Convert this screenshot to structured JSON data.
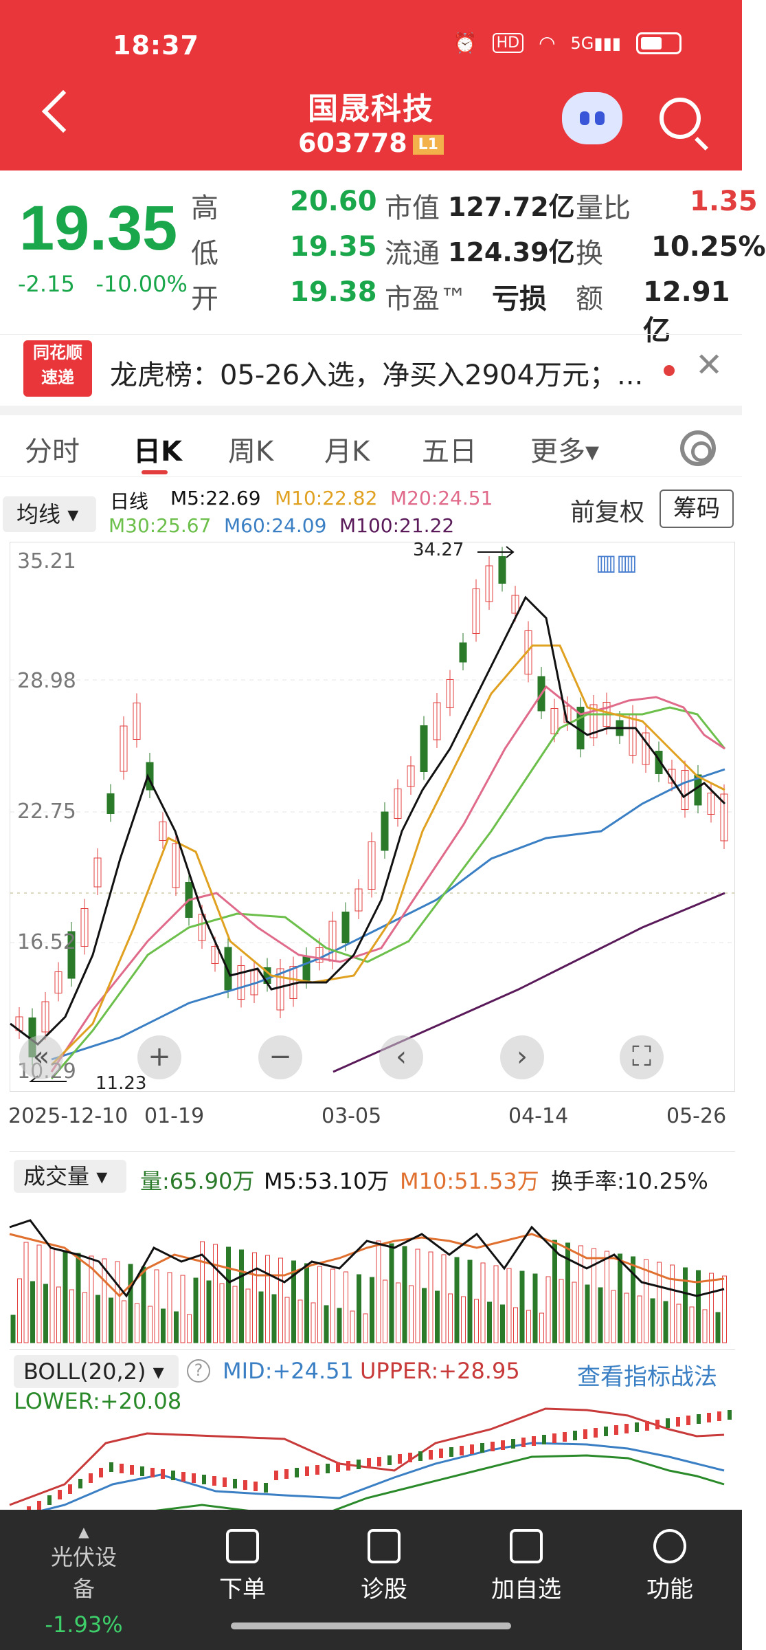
{
  "status": {
    "time": "18:37",
    "icons": [
      "alarm-icon",
      "hd-icon",
      "wifi-icon",
      "5g-signal-icon",
      "battery-icon"
    ]
  },
  "header": {
    "title": "国晟科技",
    "code": "603778",
    "badge": "L1"
  },
  "quote": {
    "price": "19.35",
    "change": "-2.15",
    "change_pct": "-10.00%",
    "cells": [
      {
        "label": "高",
        "value": "20.60"
      },
      {
        "label": "市值",
        "value": "127.72亿"
      },
      {
        "label": "量比",
        "value": "1.35"
      },
      {
        "label": "低",
        "value": "19.35"
      },
      {
        "label": "流通",
        "value": "124.39亿"
      },
      {
        "label": "换",
        "value": "10.25%"
      },
      {
        "label": "开",
        "value": "19.38"
      },
      {
        "label": "市盈™",
        "value": "亏损"
      },
      {
        "label": "额",
        "value": "12.91亿"
      }
    ]
  },
  "news": {
    "logo_top": "同花顺",
    "logo_bottom": "速递",
    "text": "龙虎榜：05-26入选，净买入2904万元；..."
  },
  "tabs": [
    "分时",
    "日K",
    "周K",
    "月K",
    "五日",
    "更多▾"
  ],
  "ma_legend": {
    "button": "均线",
    "label": "日线",
    "m5": "M5:22.69",
    "m10": "M10:22.82",
    "m20": "M20:24.51",
    "m30": "M30:25.67",
    "m60": "M60:24.09",
    "m100": "M100:21.22",
    "fq": "前复权",
    "chouma": "筹码",
    "colors": {
      "m5": "#111111",
      "m10": "#e0a020",
      "m20": "#e06a8a",
      "m30": "#6bbf4a",
      "m60": "#3a7fc4",
      "m100": "#5a1a5a"
    }
  },
  "kline": {
    "y_ticks": [
      "35.21",
      "28.98",
      "22.75",
      "16.52",
      "10.29"
    ],
    "x_ticks": [
      "2025-12-10",
      "01-19",
      "03-05",
      "04-14",
      "05-26"
    ],
    "high_mark": "34.27",
    "low_mark": "11.23"
  },
  "volume": {
    "button": "成交量",
    "vol": "量:65.90万",
    "m5": "M5:53.10万",
    "m10": "M10:51.53万",
    "turnover": "换手率:10.25%"
  },
  "boll": {
    "button": "BOLL(20,2)",
    "mid": "MID:+24.51",
    "upper": "UPPER:+28.95",
    "lower": "LOWER:+20.08",
    "link": "查看指标战法"
  },
  "bottom": {
    "sector": "光伏设备",
    "sector_chg": "-1.93%",
    "items": [
      "下单",
      "诊股",
      "加自选",
      "功能"
    ]
  }
}
